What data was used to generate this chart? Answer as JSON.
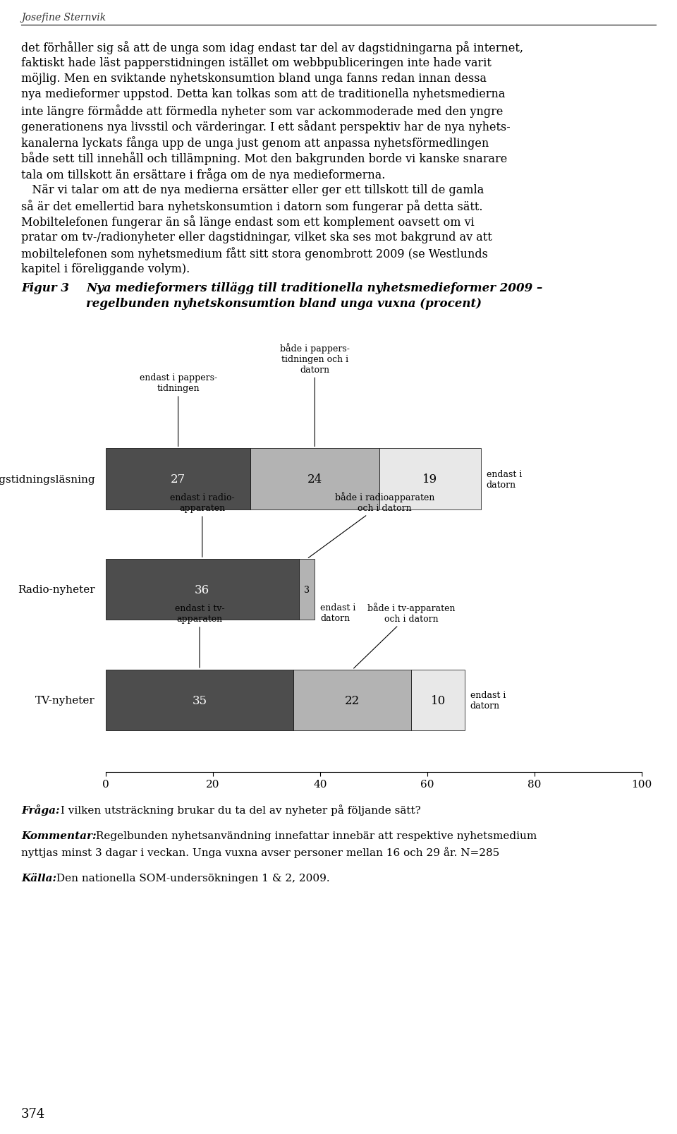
{
  "page_header": "Josefine Sternvik",
  "body_text_lines": [
    "det förhåller sig så att de unga som idag endast tar del av dagstidningarna på internet,",
    "faktiskt hade läst papperstidningen istället om webbpubliceringen inte hade varit",
    "möjlig. Men en sviktande nyhetskonsumtion bland unga fanns redan innan dessa",
    "nya medieformer uppstod. Detta kan tolkas som att de traditionella nyhetsmedierna",
    "inte längre förmådde att förmedla nyheter som var ackommoderade med den yngre",
    "generationens nya livsstil och värderingar. I ett sådant perspektiv har de nya nyhets-",
    "kanalerna lyckats fånga upp de unga just genom att anpassa nyhetsförmedlingen",
    "både sett till innehåll och tillämpning. Mot den bakgrunden borde vi kanske snarare",
    "tala om tillskott än ersättare i fråga om de nya medieformerna.",
    "   När vi talar om att de nya medierna ersätter eller ger ett tillskott till de gamla",
    "så är det emellertid bara nyhetskonsumtion i datorn som fungerar på detta sätt.",
    "Mobiltelefonen fungerar än så länge endast som ett komplement oavsett om vi",
    "pratar om tv-/radionyheter eller dagstidningar, vilket ska ses mot bakgrund av att",
    "mobiltelefonen som nyhetsmedium fått sitt stora genombrott 2009 (se Westlunds",
    "kapitel i föreliggande volym)."
  ],
  "figure_label": "Figur 3",
  "figure_title_line1": "Nya medieformers tillägg till traditionella nyhetsmedieformer 2009 –",
  "figure_title_line2": "regelbunden nyhetskonsumtion bland unga vuxna (procent)",
  "bar_data": [
    {
      "label": "Dagstidningsläsning",
      "dark": 27,
      "medium": 24,
      "light": 19
    },
    {
      "label": "Radio-nyheter",
      "dark": 36,
      "medium": 3,
      "light": null
    },
    {
      "label": "TV-nyheter",
      "dark": 35,
      "medium": 22,
      "light": 10
    }
  ],
  "color_dark": "#4d4d4d",
  "color_medium": "#b3b3b3",
  "color_light": "#e8e8e8",
  "xticks": [
    0,
    20,
    40,
    60,
    80,
    100
  ],
  "fraga_bold": "Fråga:",
  "fraga_text": " I vilken utsträckning brukar du ta del av nyheter på följande sätt?",
  "kommentar_bold": "Kommentar:",
  "kommentar_text": " Regelbunden nyhetsanvändning innefattar innebär att respektive nyhetsmedium",
  "kommentar_text2": "nyttjas minst 3 dagar i veckan. Unga vuxna avser personer mellan 16 och 29 år. N=285",
  "kalla_bold": "Källa:",
  "kalla_text": " Den nationella SOM-undersökningen 1 & 2, 2009.",
  "page_number": "374",
  "background_color": "#ffffff",
  "text_color": "#000000"
}
